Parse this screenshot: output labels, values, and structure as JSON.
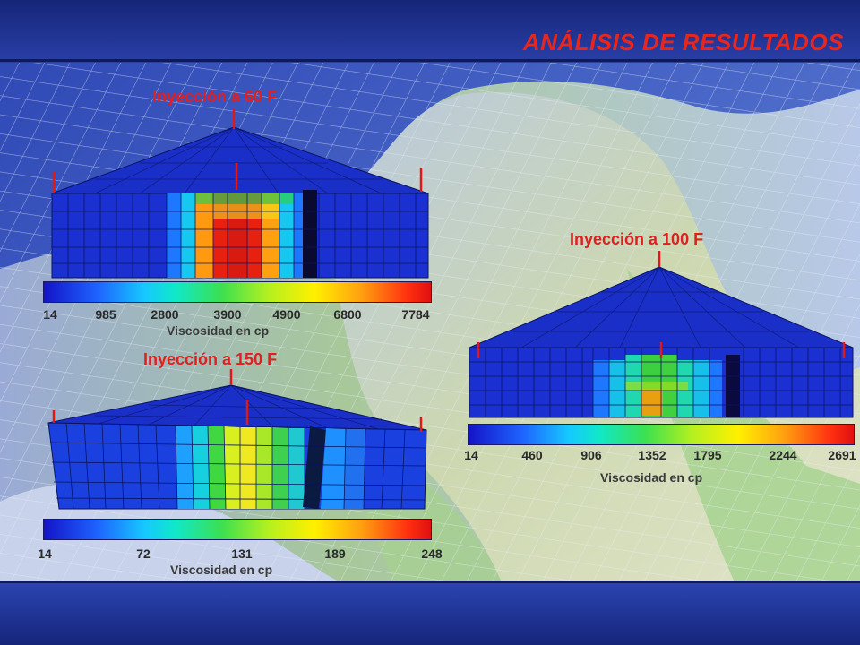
{
  "slide": {
    "title": "ANÁLISIS DE RESULTADOS"
  },
  "colors": {
    "title": "#e8261c",
    "panel_title": "#e02020",
    "frame_blue": "#1b2c8c",
    "grid_blue": "#1530d8"
  },
  "panels": [
    {
      "title": "Inyección a 60 F",
      "scale_ticks": [
        "14",
        "985",
        "2800",
        "3900",
        "4900",
        "6800",
        "7784"
      ],
      "scale_label": "Viscosidad en cp"
    },
    {
      "title": "Inyección a 100 F",
      "scale_ticks": [
        "14",
        "460",
        "906",
        "1352",
        "1795",
        "2244",
        "2691"
      ],
      "scale_label": "Viscosidad en cp"
    },
    {
      "title": "Inyección a 150 F",
      "scale_ticks": [
        "14",
        "72",
        "131",
        "189",
        "248"
      ],
      "scale_label": "Viscosidad en cp"
    }
  ]
}
